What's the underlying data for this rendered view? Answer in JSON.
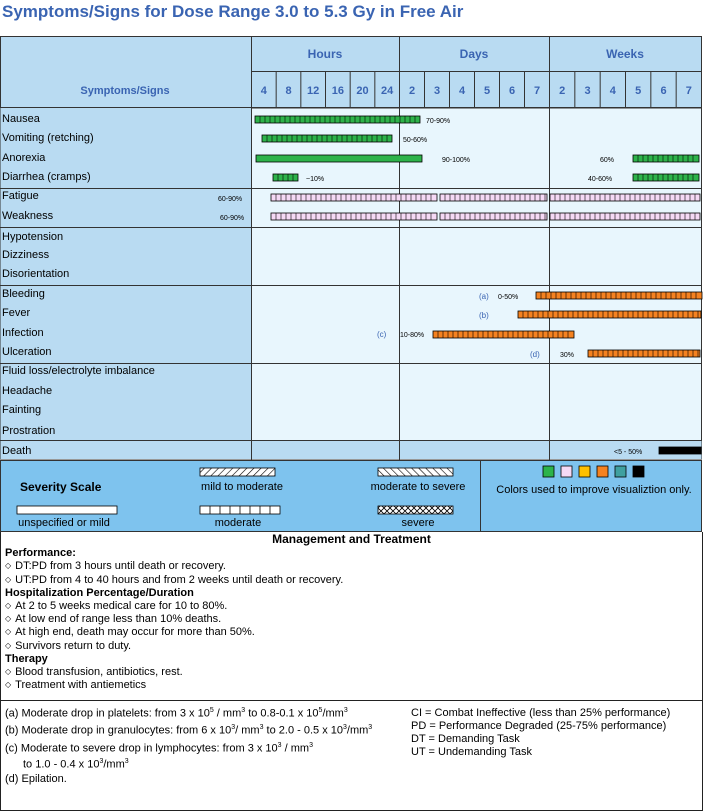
{
  "title": "Symptoms/Signs for Dose Range 3.0 to 5.3 Gy in Free Air",
  "table": {
    "col_header_label": "Symptoms/Signs",
    "groups": [
      "Hours",
      "Days",
      "Weeks"
    ],
    "ticks": [
      "4",
      "8",
      "12",
      "16",
      "20",
      "24",
      "2",
      "3",
      "4",
      "5",
      "6",
      "7",
      "2",
      "3",
      "4",
      "5",
      "6",
      "7"
    ],
    "rows": [
      "Nausea",
      "Vomiting (retching)",
      "Anorexia",
      "Diarrhea (cramps)",
      "Fatigue",
      "Weakness",
      "Hypotension",
      "Dizziness",
      "Disorientation",
      "Bleeding",
      "Fever",
      "Infection",
      "Ulceration",
      "Fluid loss/electrolyte imbalance",
      "Headache",
      "Fainting",
      "Prostration",
      "Death"
    ],
    "labels": {
      "nausea": "70-90%",
      "vomiting": "50-60%",
      "anorexia_1": "90-100%",
      "anorexia_2": "60%",
      "diarrhea_1": "~10%",
      "diarrhea_2": "40-60%",
      "fatigue": "60-90%",
      "weakness": "60-90%",
      "bleeding_note": "(a)",
      "bleeding": "0-50%",
      "fever_note": "(b)",
      "infection_note": "(c)",
      "infection": "10-80%",
      "ulceration_note": "(d)",
      "ulceration": "30%",
      "death": "<5 - 50%"
    },
    "colors": {
      "green": "#2db34a",
      "pink": "#f5d9f5",
      "orange": "#f58220",
      "black": "#000000",
      "yellow": "#ffc000",
      "teal": "#3fa0a0",
      "header_bg": "#b9dbf2",
      "header_text": "#3a64b2",
      "row_bg": "#e8f6fd"
    }
  },
  "severity": {
    "title": "Severity Scale",
    "mild_to_moderate": "mild to moderate",
    "moderate_to_severe": "moderate to severe",
    "unspecified": "unspecified or mild",
    "moderate": "moderate",
    "severe": "severe",
    "colors_note": "Colors used to improve visualiztion only."
  },
  "management": {
    "title": "Management and Treatment",
    "performance_title": "Performance:",
    "performance": [
      "DT:PD from 3 hours until death or recovery.",
      "UT:PD from 4 to 40 hours and from 2 weeks until death or recovery."
    ],
    "hospital_title": "Hospitalization Percentage/Duration",
    "hospital": [
      "At 2 to 5 weeks medical care for 10 to 80%.",
      "At low end of range less than 10% deaths.",
      "At high end, death may occur for more than 50%.",
      "Survivors return to duty."
    ],
    "therapy_title": "Therapy",
    "therapy": [
      "Blood transfusion, antibiotics, rest.",
      "Treatment with antiemetics"
    ]
  },
  "notes": {
    "a_pre": "(a) Moderate drop in platelets: from 3 x 10",
    "a_e1": "5",
    "a_mid": " / mm",
    "a_e2": "3",
    "a_mid2": "  to 0.8-0.1 x 10",
    "a_e3": "5",
    "a_post": "/mm",
    "a_e4": "3",
    "b_pre": "(b) Moderate drop in granulocytes: from 6 x 10",
    "b_e1": "3",
    "b_mid": "/ mm",
    "b_e2": "3",
    "b_mid2": "  to 2.0 - 0.5 x 10",
    "b_e3": "3",
    "b_post": "/mm",
    "b_e4": "3",
    "c_pre": "(c) Moderate to severe drop in lymphocytes: from 3 x 10",
    "c_e1": "3",
    "c_post": " / mm",
    "c_e2": "3",
    "c2_pre": "to 1.0 - 0.4 x 10",
    "c2_e1": "3",
    "c2_post": "/mm",
    "c2_e2": "3",
    "d": "(d) Epilation.",
    "defs": [
      "CI = Combat Ineffective (less than 25% performance)",
      "PD = Performance Degraded (25-75% performance)",
      "DT = Demanding Task",
      "UT = Undemanding Task"
    ]
  }
}
